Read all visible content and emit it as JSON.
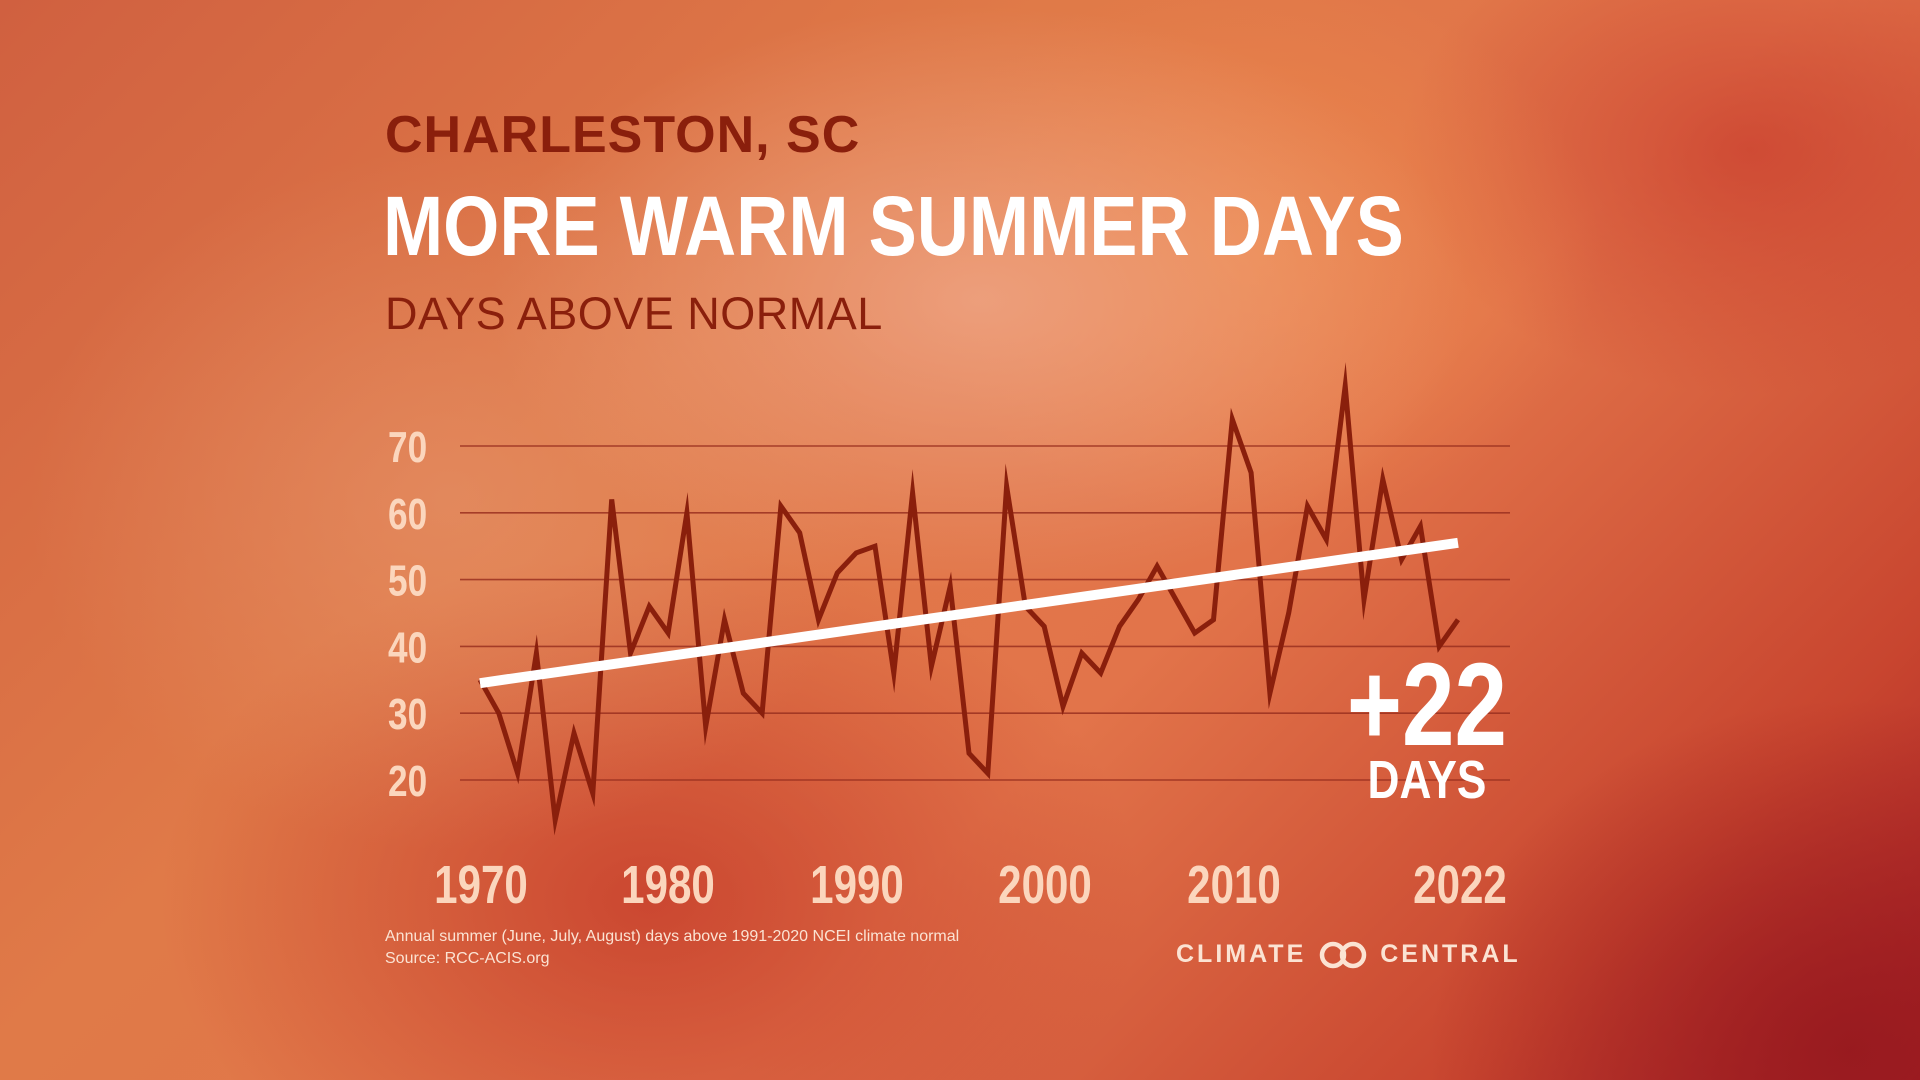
{
  "header": {
    "city": "CHARLESTON, SC",
    "headline": "MORE WARM SUMMER DAYS",
    "subtitle": "DAYS ABOVE NORMAL"
  },
  "callout": {
    "value": "+22",
    "unit": "DAYS"
  },
  "footer": {
    "note": "Annual summer (June, July, August) days above 1991-2020 NCEI climate normal",
    "source": "Source: RCC-ACIS.org"
  },
  "logo": {
    "left_text": "CLIMATE",
    "right_text": "CENTRAL"
  },
  "colors": {
    "series_line": "#8a1f0c",
    "trend_line": "#ffffff",
    "tick_label": "#fbd6bd",
    "gridline": "#9a3020"
  },
  "chart_data": {
    "type": "line",
    "title": "MORE WARM SUMMER DAYS",
    "ylabel": "DAYS ABOVE NORMAL",
    "xlabel": "",
    "xlim": [
      1970,
      2022
    ],
    "ylim": [
      14,
      74
    ],
    "yticks": [
      20,
      30,
      40,
      50,
      60,
      70
    ],
    "xticks": [
      1970,
      1980,
      1990,
      2000,
      2010,
      2022
    ],
    "grid": true,
    "series": [
      {
        "name": "Days above normal",
        "x": [
          1970,
          1971,
          1972,
          1973,
          1974,
          1975,
          1976,
          1977,
          1978,
          1979,
          1980,
          1981,
          1982,
          1983,
          1984,
          1985,
          1986,
          1987,
          1988,
          1989,
          1990,
          1991,
          1992,
          1993,
          1994,
          1995,
          1996,
          1997,
          1998,
          1999,
          2000,
          2001,
          2002,
          2003,
          2004,
          2005,
          2006,
          2007,
          2008,
          2009,
          2010,
          2011,
          2012,
          2013,
          2014,
          2015,
          2016,
          2017,
          2018,
          2019,
          2020,
          2021,
          2022
        ],
        "values": [
          35,
          30,
          21,
          39,
          14,
          27,
          18,
          62,
          39,
          46,
          42,
          60,
          28,
          44,
          33,
          30,
          61,
          57,
          44,
          51,
          54,
          55,
          36,
          63,
          37,
          49,
          24,
          21,
          64,
          46,
          43,
          31,
          39,
          36,
          43,
          47,
          52,
          47,
          42,
          44,
          74,
          66,
          33,
          45,
          61,
          56,
          79,
          47,
          65,
          53,
          58,
          40,
          44
        ]
      },
      {
        "name": "Trend",
        "x": [
          1970,
          2022
        ],
        "values": [
          34.5,
          55.5
        ]
      }
    ],
    "annotation": "+22 DAYS"
  }
}
